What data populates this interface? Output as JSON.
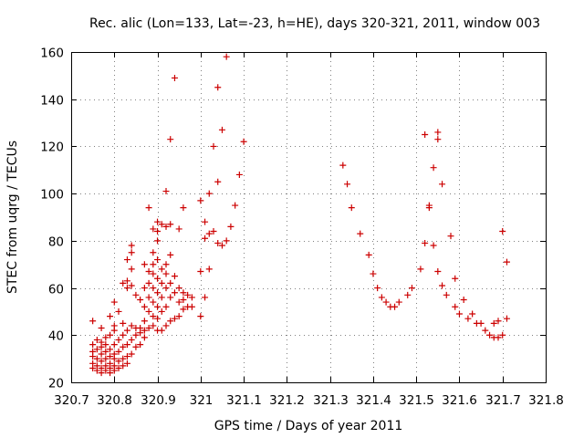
{
  "chart_data": {
    "type": "scatter",
    "title": "Rec. alic (Lon=133, Lat=-23, h=HE), days 320-321, 2011, window 003",
    "xlabel": "GPS time / Days of year 2011",
    "ylabel": "STEC from uqrg / TECUs",
    "xlim": [
      320.7,
      321.8
    ],
    "ylim": [
      20,
      160
    ],
    "xticks": [
      "320.7",
      "320.8",
      "320.9",
      "321",
      "321.1",
      "321.2",
      "321.3",
      "321.4",
      "321.5",
      "321.6",
      "321.7",
      "321.8"
    ],
    "yticks": [
      "20",
      "40",
      "60",
      "80",
      "100",
      "120",
      "140",
      "160"
    ],
    "grid": true,
    "marker": "+",
    "color": "#cc0000",
    "series": [
      {
        "points": [
          [
            320.75,
            26
          ],
          [
            320.75,
            28
          ],
          [
            320.75,
            31
          ],
          [
            320.75,
            33
          ],
          [
            320.75,
            36
          ],
          [
            320.75,
            46
          ],
          [
            320.76,
            25
          ],
          [
            320.76,
            27
          ],
          [
            320.76,
            30
          ],
          [
            320.76,
            34
          ],
          [
            320.76,
            38
          ],
          [
            320.77,
            24
          ],
          [
            320.77,
            26
          ],
          [
            320.77,
            29
          ],
          [
            320.77,
            32
          ],
          [
            320.77,
            35
          ],
          [
            320.77,
            37
          ],
          [
            320.77,
            43
          ],
          [
            320.78,
            25
          ],
          [
            320.78,
            27
          ],
          [
            320.78,
            30
          ],
          [
            320.78,
            33
          ],
          [
            320.78,
            36
          ],
          [
            320.78,
            39
          ],
          [
            320.79,
            24
          ],
          [
            320.79,
            26
          ],
          [
            320.79,
            28
          ],
          [
            320.79,
            31
          ],
          [
            320.79,
            34
          ],
          [
            320.79,
            40
          ],
          [
            320.79,
            48
          ],
          [
            320.8,
            25
          ],
          [
            320.8,
            27
          ],
          [
            320.8,
            30
          ],
          [
            320.8,
            32
          ],
          [
            320.8,
            36
          ],
          [
            320.8,
            42
          ],
          [
            320.8,
            44
          ],
          [
            320.8,
            54
          ],
          [
            320.81,
            26
          ],
          [
            320.81,
            29
          ],
          [
            320.81,
            33
          ],
          [
            320.81,
            38
          ],
          [
            320.81,
            50
          ],
          [
            320.82,
            27
          ],
          [
            320.82,
            30
          ],
          [
            320.82,
            35
          ],
          [
            320.82,
            40
          ],
          [
            320.82,
            45
          ],
          [
            320.82,
            62
          ],
          [
            320.83,
            28
          ],
          [
            320.83,
            31
          ],
          [
            320.83,
            36
          ],
          [
            320.83,
            42
          ],
          [
            320.83,
            60
          ],
          [
            320.83,
            63
          ],
          [
            320.83,
            72
          ],
          [
            320.84,
            32
          ],
          [
            320.84,
            38
          ],
          [
            320.84,
            44
          ],
          [
            320.84,
            61
          ],
          [
            320.84,
            68
          ],
          [
            320.84,
            75
          ],
          [
            320.84,
            78
          ],
          [
            320.85,
            35
          ],
          [
            320.85,
            40
          ],
          [
            320.85,
            43
          ],
          [
            320.85,
            57
          ],
          [
            320.86,
            36
          ],
          [
            320.86,
            41
          ],
          [
            320.86,
            43
          ],
          [
            320.86,
            55
          ],
          [
            320.87,
            39
          ],
          [
            320.87,
            42
          ],
          [
            320.87,
            46
          ],
          [
            320.87,
            52
          ],
          [
            320.87,
            60
          ],
          [
            320.87,
            70
          ],
          [
            320.88,
            43
          ],
          [
            320.88,
            50
          ],
          [
            320.88,
            56
          ],
          [
            320.88,
            62
          ],
          [
            320.88,
            67
          ],
          [
            320.88,
            94
          ],
          [
            320.89,
            44
          ],
          [
            320.89,
            48
          ],
          [
            320.89,
            54
          ],
          [
            320.89,
            60
          ],
          [
            320.89,
            66
          ],
          [
            320.89,
            70
          ],
          [
            320.89,
            75
          ],
          [
            320.89,
            85
          ],
          [
            320.9,
            42
          ],
          [
            320.9,
            47
          ],
          [
            320.9,
            52
          ],
          [
            320.9,
            58
          ],
          [
            320.9,
            64
          ],
          [
            320.9,
            72
          ],
          [
            320.9,
            80
          ],
          [
            320.9,
            84
          ],
          [
            320.9,
            88
          ],
          [
            320.91,
            42
          ],
          [
            320.91,
            50
          ],
          [
            320.91,
            56
          ],
          [
            320.91,
            62
          ],
          [
            320.91,
            68
          ],
          [
            320.91,
            87
          ],
          [
            320.92,
            44
          ],
          [
            320.92,
            52
          ],
          [
            320.92,
            60
          ],
          [
            320.92,
            66
          ],
          [
            320.92,
            70
          ],
          [
            320.92,
            86
          ],
          [
            320.92,
            101
          ],
          [
            320.93,
            46
          ],
          [
            320.93,
            56
          ],
          [
            320.93,
            62
          ],
          [
            320.93,
            74
          ],
          [
            320.93,
            87
          ],
          [
            320.93,
            123
          ],
          [
            320.94,
            47
          ],
          [
            320.94,
            58
          ],
          [
            320.94,
            65
          ],
          [
            320.94,
            149
          ],
          [
            320.95,
            48
          ],
          [
            320.95,
            54
          ],
          [
            320.95,
            60
          ],
          [
            320.95,
            85
          ],
          [
            320.96,
            51
          ],
          [
            320.96,
            55
          ],
          [
            320.96,
            58
          ],
          [
            320.96,
            94
          ],
          [
            320.97,
            52
          ],
          [
            320.97,
            57
          ],
          [
            320.98,
            52
          ],
          [
            320.98,
            56
          ],
          [
            321.0,
            48
          ],
          [
            321.0,
            67
          ],
          [
            321.0,
            97
          ],
          [
            321.01,
            56
          ],
          [
            321.01,
            81
          ],
          [
            321.01,
            88
          ],
          [
            321.02,
            68
          ],
          [
            321.02,
            83
          ],
          [
            321.02,
            100
          ],
          [
            321.03,
            84
          ],
          [
            321.03,
            120
          ],
          [
            321.04,
            79
          ],
          [
            321.04,
            105
          ],
          [
            321.04,
            145
          ],
          [
            321.05,
            78
          ],
          [
            321.05,
            127
          ],
          [
            321.06,
            80
          ],
          [
            321.06,
            158
          ],
          [
            321.07,
            86
          ],
          [
            321.08,
            95
          ],
          [
            321.09,
            108
          ],
          [
            321.1,
            122
          ],
          [
            321.33,
            112
          ],
          [
            321.34,
            104
          ],
          [
            321.35,
            94
          ],
          [
            321.37,
            83
          ],
          [
            321.39,
            74
          ],
          [
            321.4,
            66
          ],
          [
            321.41,
            60
          ],
          [
            321.42,
            56
          ],
          [
            321.43,
            54
          ],
          [
            321.44,
            52
          ],
          [
            321.45,
            52
          ],
          [
            321.46,
            54
          ],
          [
            321.48,
            57
          ],
          [
            321.49,
            60
          ],
          [
            321.51,
            68
          ],
          [
            321.52,
            79
          ],
          [
            321.52,
            125
          ],
          [
            321.53,
            94
          ],
          [
            321.53,
            95
          ],
          [
            321.54,
            78
          ],
          [
            321.54,
            111
          ],
          [
            321.55,
            67
          ],
          [
            321.55,
            126
          ],
          [
            321.55,
            123
          ],
          [
            321.56,
            61
          ],
          [
            321.56,
            104
          ],
          [
            321.57,
            57
          ],
          [
            321.58,
            82
          ],
          [
            321.59,
            52
          ],
          [
            321.59,
            64
          ],
          [
            321.6,
            49
          ],
          [
            321.61,
            55
          ],
          [
            321.62,
            47
          ],
          [
            321.63,
            49
          ],
          [
            321.64,
            45
          ],
          [
            321.65,
            45
          ],
          [
            321.66,
            42
          ],
          [
            321.67,
            40
          ],
          [
            321.68,
            39
          ],
          [
            321.68,
            45
          ],
          [
            321.69,
            39
          ],
          [
            321.69,
            46
          ],
          [
            321.7,
            40
          ],
          [
            321.7,
            84
          ],
          [
            321.71,
            47
          ],
          [
            321.71,
            71
          ]
        ]
      }
    ]
  }
}
